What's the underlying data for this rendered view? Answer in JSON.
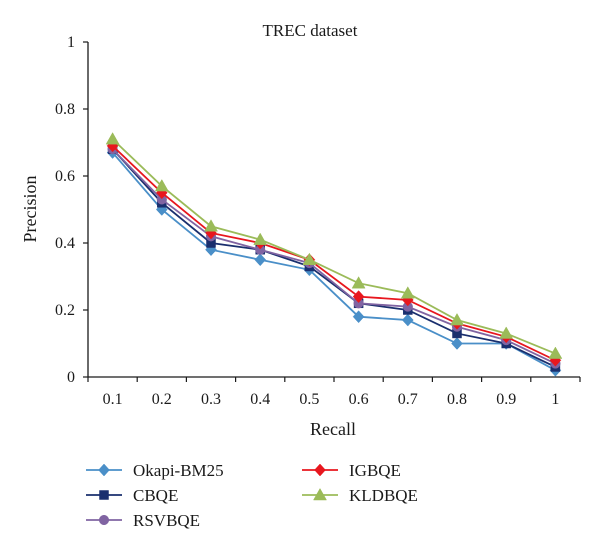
{
  "chart_data": {
    "type": "line",
    "title": "TREC dataset",
    "xlabel": "Recall",
    "ylabel": "Precision",
    "categories": [
      "0.1",
      "0.2",
      "0.3",
      "0.4",
      "0.5",
      "0.6",
      "0.7",
      "0.8",
      "0.9",
      "1"
    ],
    "y_ticks": [
      "0",
      "0.2",
      "0.4",
      "0.6",
      "0.8",
      "1"
    ],
    "ylim": [
      0,
      1
    ],
    "grid": false,
    "legend_position": "bottom",
    "series": [
      {
        "name": "Okapi-BM25",
        "color": "#4a8fc8",
        "marker": "diamond",
        "values": [
          0.67,
          0.5,
          0.38,
          0.35,
          0.32,
          0.18,
          0.17,
          0.1,
          0.1,
          0.02
        ]
      },
      {
        "name": "CBQE",
        "color": "#1a2f6e",
        "marker": "square",
        "values": [
          0.68,
          0.52,
          0.4,
          0.38,
          0.33,
          0.22,
          0.2,
          0.13,
          0.1,
          0.03
        ]
      },
      {
        "name": "RSVBQE",
        "color": "#8064a2",
        "marker": "circle",
        "values": [
          0.68,
          0.53,
          0.42,
          0.38,
          0.34,
          0.22,
          0.21,
          0.15,
          0.11,
          0.04
        ]
      },
      {
        "name": "IGBQE",
        "color": "#e8171e",
        "marker": "diamond",
        "values": [
          0.69,
          0.55,
          0.43,
          0.4,
          0.35,
          0.24,
          0.23,
          0.16,
          0.12,
          0.05
        ]
      },
      {
        "name": "KLDBQE",
        "color": "#9bbb59",
        "marker": "triangle",
        "values": [
          0.71,
          0.57,
          0.45,
          0.41,
          0.35,
          0.28,
          0.25,
          0.17,
          0.13,
          0.07
        ]
      }
    ]
  }
}
